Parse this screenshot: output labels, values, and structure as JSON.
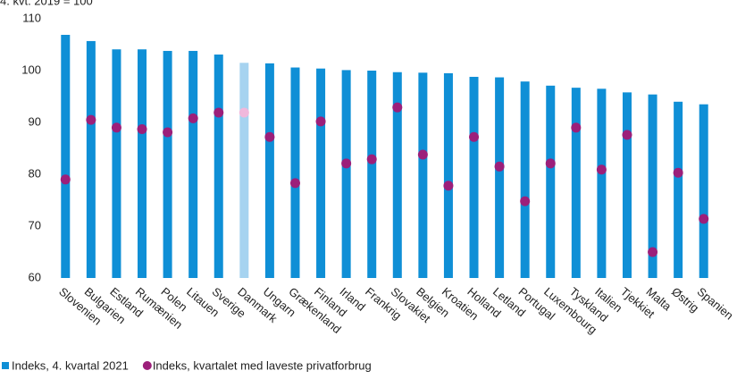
{
  "chart_data": {
    "type": "bar",
    "subtitle": "4. kvt. 2019 = 100",
    "categories": [
      "Slovenien",
      "Bulgarien",
      "Estland",
      "Rumænien",
      "Polen",
      "Litauen",
      "Sverige",
      "Danmark",
      "Ungarn",
      "Grækenland",
      "Finland",
      "Irland",
      "Frankrig",
      "Slovakiet",
      "Belgien",
      "Kroatien",
      "Holland",
      "Letland",
      "Portugal",
      "Luxembourg",
      "Tyskland",
      "Italien",
      "Tjekkiet",
      "Malta",
      "Østrig",
      "Spanien"
    ],
    "series": [
      {
        "name": "Indeks, 4. kvartal 2021",
        "type": "bar",
        "color": "#0f8fd6",
        "colors": [
          "#0f8fd6",
          "#0f8fd6",
          "#0f8fd6",
          "#0f8fd6",
          "#0f8fd6",
          "#0f8fd6",
          "#0f8fd6",
          "#a6d3f0",
          "#0f8fd6",
          "#0f8fd6",
          "#0f8fd6",
          "#0f8fd6",
          "#0f8fd6",
          "#0f8fd6",
          "#0f8fd6",
          "#0f8fd6",
          "#0f8fd6",
          "#0f8fd6",
          "#0f8fd6",
          "#0f8fd6",
          "#0f8fd6",
          "#0f8fd6",
          "#0f8fd6",
          "#0f8fd6",
          "#0f8fd6",
          "#0f8fd6"
        ],
        "values": [
          106.9,
          105.7,
          104.1,
          104.1,
          103.8,
          103.8,
          103.1,
          101.5,
          101.4,
          100.6,
          100.4,
          100.1,
          100.0,
          99.7,
          99.6,
          99.5,
          98.8,
          98.7,
          97.9,
          97.1,
          96.7,
          96.5,
          95.8,
          95.4,
          94.0,
          93.5
        ]
      },
      {
        "name": "Indeks, kvartalet med laveste privatforbrug",
        "type": "scatter",
        "color": "#9c1f7a",
        "colors": [
          "#9c1f7a",
          "#9c1f7a",
          "#9c1f7a",
          "#9c1f7a",
          "#9c1f7a",
          "#9c1f7a",
          "#9c1f7a",
          "#f0b8dc",
          "#9c1f7a",
          "#9c1f7a",
          "#9c1f7a",
          "#9c1f7a",
          "#9c1f7a",
          "#9c1f7a",
          "#9c1f7a",
          "#9c1f7a",
          "#9c1f7a",
          "#9c1f7a",
          "#9c1f7a",
          "#9c1f7a",
          "#9c1f7a",
          "#9c1f7a",
          "#9c1f7a",
          "#9c1f7a",
          "#9c1f7a",
          "#9c1f7a"
        ],
        "values": [
          79.0,
          90.5,
          89.0,
          88.7,
          88.1,
          90.8,
          91.9,
          91.9,
          87.2,
          78.3,
          90.2,
          82.1,
          82.9,
          92.9,
          83.8,
          77.8,
          87.2,
          81.5,
          74.8,
          82.1,
          89.0,
          80.9,
          87.6,
          65.0,
          80.3,
          71.4
        ]
      }
    ],
    "ylim": [
      60,
      110
    ],
    "yticks": [
      60,
      70,
      80,
      90,
      100,
      110
    ],
    "grid": false,
    "legend": "bottom"
  }
}
